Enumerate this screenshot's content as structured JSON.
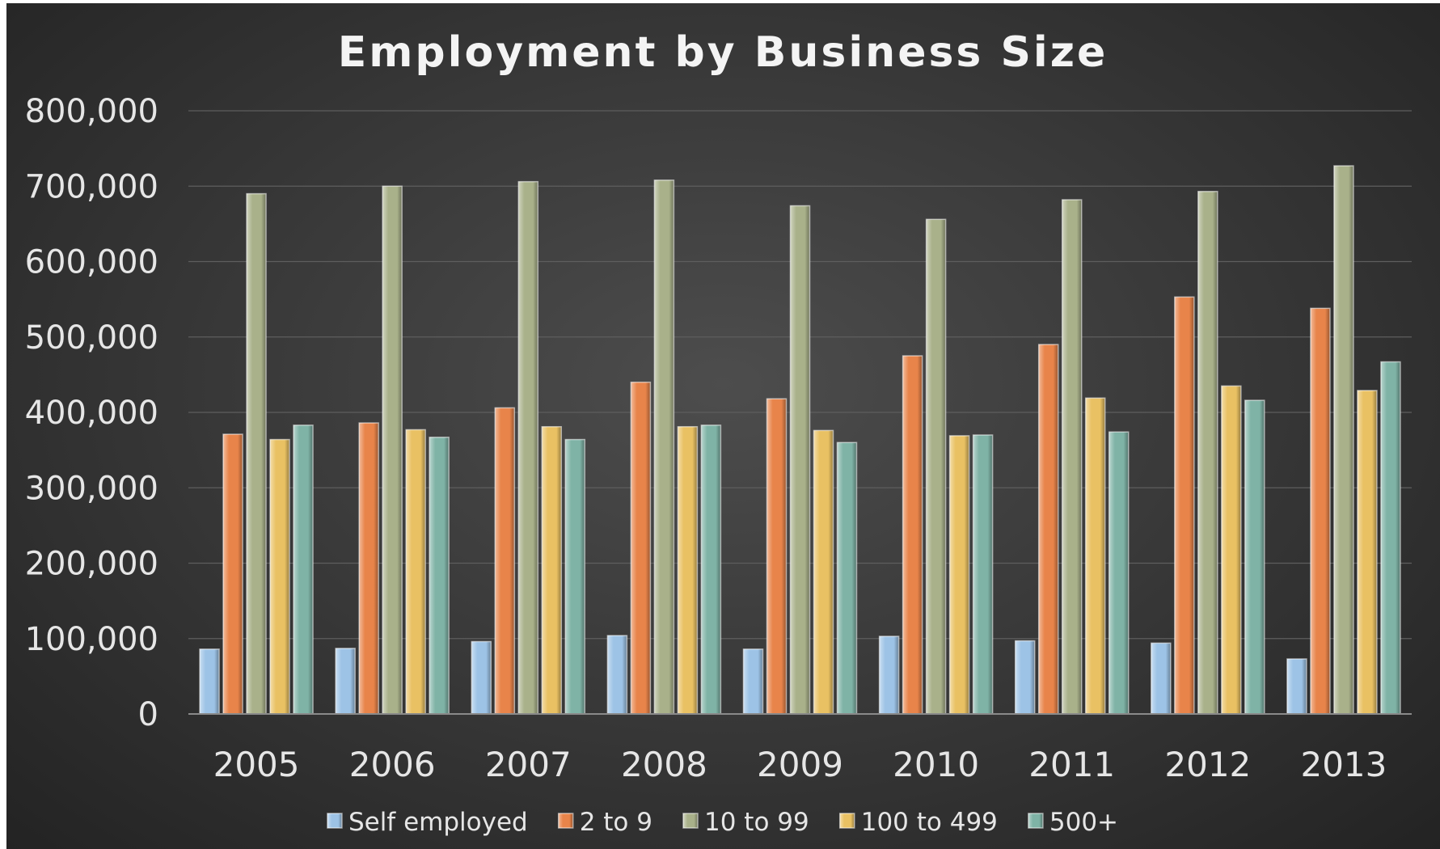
{
  "chart_data": {
    "type": "bar",
    "title": "Employment by Business Size",
    "xlabel": "",
    "ylabel": "",
    "categories": [
      "2005",
      "2006",
      "2007",
      "2008",
      "2009",
      "2010",
      "2011",
      "2012",
      "2013"
    ],
    "ylim": [
      0,
      800000
    ],
    "yticks": [
      0,
      100000,
      200000,
      300000,
      400000,
      500000,
      600000,
      700000,
      800000
    ],
    "ytick_labels": [
      "0",
      "100,000",
      "200,000",
      "300,000",
      "400,000",
      "500,000",
      "600,000",
      "700,000",
      "800,000"
    ],
    "grid": true,
    "legend_position": "bottom",
    "series": [
      {
        "name": "Self employed",
        "color": "#9dc3e6",
        "values": [
          86000,
          87000,
          96000,
          104000,
          86000,
          103000,
          97000,
          94000,
          73000
        ]
      },
      {
        "name": "2 to 9",
        "color": "#e8844a",
        "values": [
          371000,
          386000,
          406000,
          440000,
          418000,
          475000,
          490000,
          553000,
          538000
        ]
      },
      {
        "name": "10 to 99",
        "color": "#a9b18a",
        "values": [
          690000,
          700000,
          706000,
          708000,
          674000,
          656000,
          682000,
          693000,
          727000
        ]
      },
      {
        "name": "100 to 499",
        "color": "#e9c163",
        "values": [
          364000,
          377000,
          381000,
          381000,
          376000,
          369000,
          419000,
          435000,
          429000
        ]
      },
      {
        "name": "500+",
        "color": "#7fb3a6",
        "values": [
          383000,
          367000,
          364000,
          383000,
          360000,
          370000,
          374000,
          416000,
          467000
        ]
      }
    ]
  }
}
